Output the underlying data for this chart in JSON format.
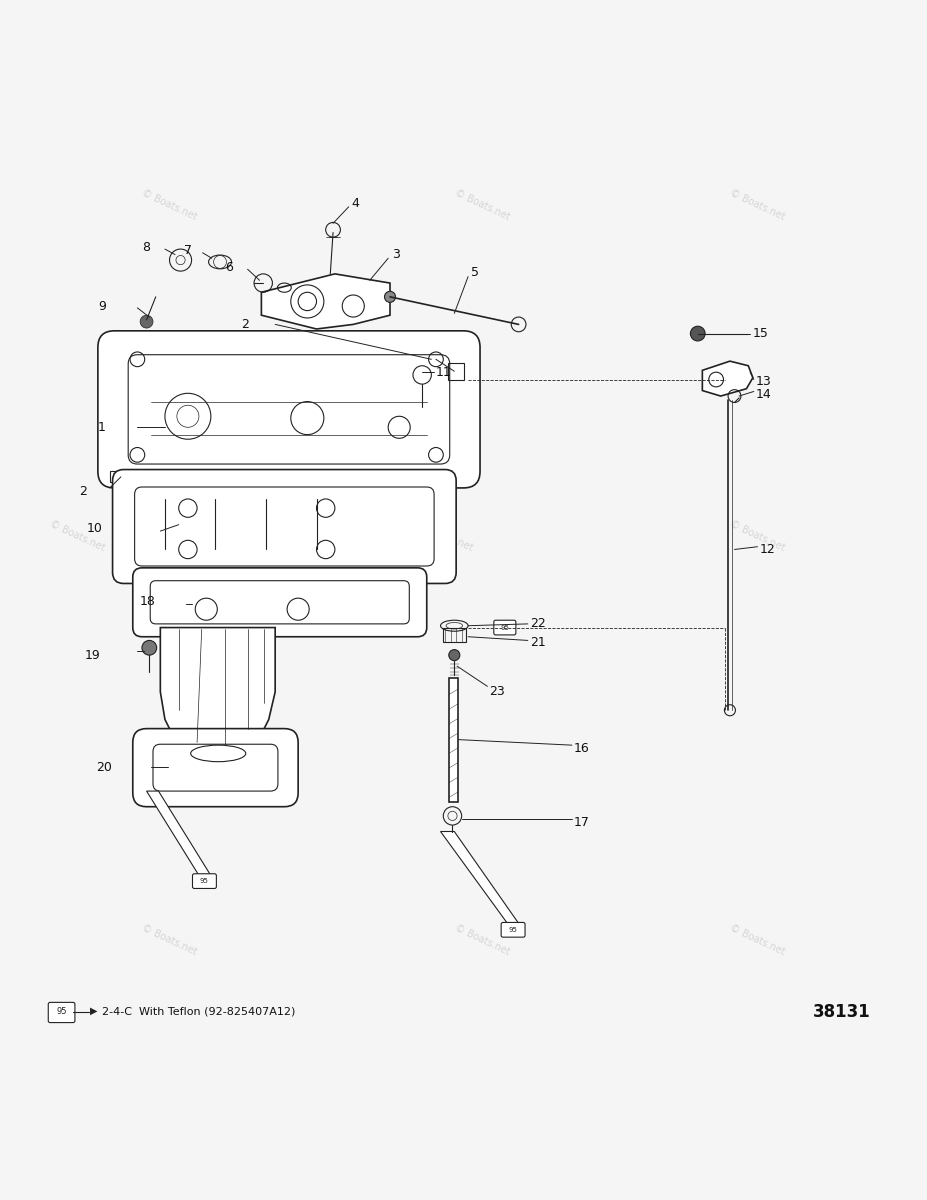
{
  "bg_color": "#f5f5f5",
  "title": "",
  "fig_number": "38131",
  "legend_text": "2-4-C  With Teflon (92-825407A12)",
  "watermark": "Boats.net",
  "line_color": "#222222",
  "text_color": "#111111"
}
